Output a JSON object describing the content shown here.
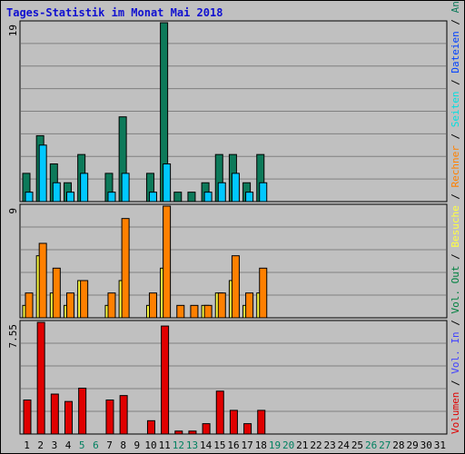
{
  "title": "Tages-Statistik im Monat Mai 2018",
  "colors": {
    "anfragen": "#0d7a5a",
    "dateien": "#00c8ff",
    "seiten": "#00e0e0",
    "besuche": "#ffff40",
    "rechner": "#ff8000",
    "volumen": "#e00000",
    "vol_out": "#008040",
    "vol_in": "#4040ff",
    "blue_label": "#0040ff",
    "weekend_day": "#008060"
  },
  "chart_data": [
    {
      "type": "bar",
      "panel": "top",
      "ymax_label": "19",
      "ylim": [
        0,
        19
      ],
      "categories": [
        "1",
        "2",
        "3",
        "4",
        "5",
        "6",
        "7",
        "8",
        "9",
        "10",
        "11",
        "12",
        "13",
        "14",
        "15",
        "16",
        "17",
        "18",
        "19",
        "20",
        "21",
        "22",
        "23",
        "24",
        "25",
        "26",
        "27",
        "28",
        "29",
        "30",
        "31"
      ],
      "series": [
        {
          "name": "Anfragen",
          "values": [
            3,
            7,
            4,
            2,
            5,
            0,
            3,
            9,
            0,
            3,
            19,
            1,
            1,
            2,
            5,
            5,
            2,
            5,
            0,
            0,
            0,
            0,
            0,
            0,
            0,
            0,
            0,
            0,
            0,
            0,
            0
          ]
        },
        {
          "name": "Dateien",
          "values": [
            1,
            6,
            2,
            1,
            3,
            0,
            1,
            3,
            0,
            1,
            4,
            0,
            0,
            1,
            2,
            3,
            1,
            2,
            0,
            0,
            0,
            0,
            0,
            0,
            0,
            0,
            0,
            0,
            0,
            0,
            0
          ]
        }
      ],
      "right_labels": [
        {
          "text": "Anfragen",
          "color": "anfragen"
        },
        {
          "text": "Dateien",
          "color": "blue_label"
        },
        {
          "text": "Seiten",
          "color": "seiten"
        }
      ]
    },
    {
      "type": "bar",
      "panel": "middle",
      "ymax_label": "9",
      "ylim": [
        0,
        9
      ],
      "series": [
        {
          "name": "Besuche",
          "values": [
            1,
            5,
            2,
            1,
            3,
            0,
            1,
            3,
            0,
            1,
            4,
            0,
            0,
            1,
            2,
            3,
            1,
            2,
            0,
            0,
            0,
            0,
            0,
            0,
            0,
            0,
            0,
            0,
            0,
            0,
            0
          ]
        },
        {
          "name": "Rechner",
          "values": [
            2,
            6,
            4,
            2,
            3,
            0,
            2,
            8,
            0,
            2,
            9,
            1,
            1,
            1,
            2,
            5,
            2,
            4,
            0,
            0,
            0,
            0,
            0,
            0,
            0,
            0,
            0,
            0,
            0,
            0,
            0
          ]
        }
      ],
      "right_labels": [
        {
          "text": "Besuche",
          "color": "besuche"
        },
        {
          "text": "Rechner",
          "color": "rechner"
        }
      ]
    },
    {
      "type": "bar",
      "panel": "bottom",
      "ymax_label": "7.55",
      "ylim": [
        0,
        7.55
      ],
      "series": [
        {
          "name": "Volumen",
          "values": [
            2.3,
            7.55,
            2.7,
            2.2,
            3.1,
            0,
            2.3,
            2.6,
            0,
            0.9,
            7.3,
            0.2,
            0.2,
            0.7,
            2.9,
            1.6,
            0.7,
            1.6,
            0,
            0,
            0,
            0,
            0,
            0,
            0,
            0,
            0,
            0,
            0,
            0,
            0
          ]
        }
      ],
      "right_labels": [
        {
          "text": "Volumen",
          "color": "volumen"
        },
        {
          "text": "Vol. In",
          "color": "vol_in"
        },
        {
          "text": "Vol. Out",
          "color": "vol_out"
        }
      ]
    }
  ],
  "separator": "/",
  "weekend_days": [
    "5",
    "6",
    "12",
    "13",
    "19",
    "20",
    "26",
    "27"
  ]
}
